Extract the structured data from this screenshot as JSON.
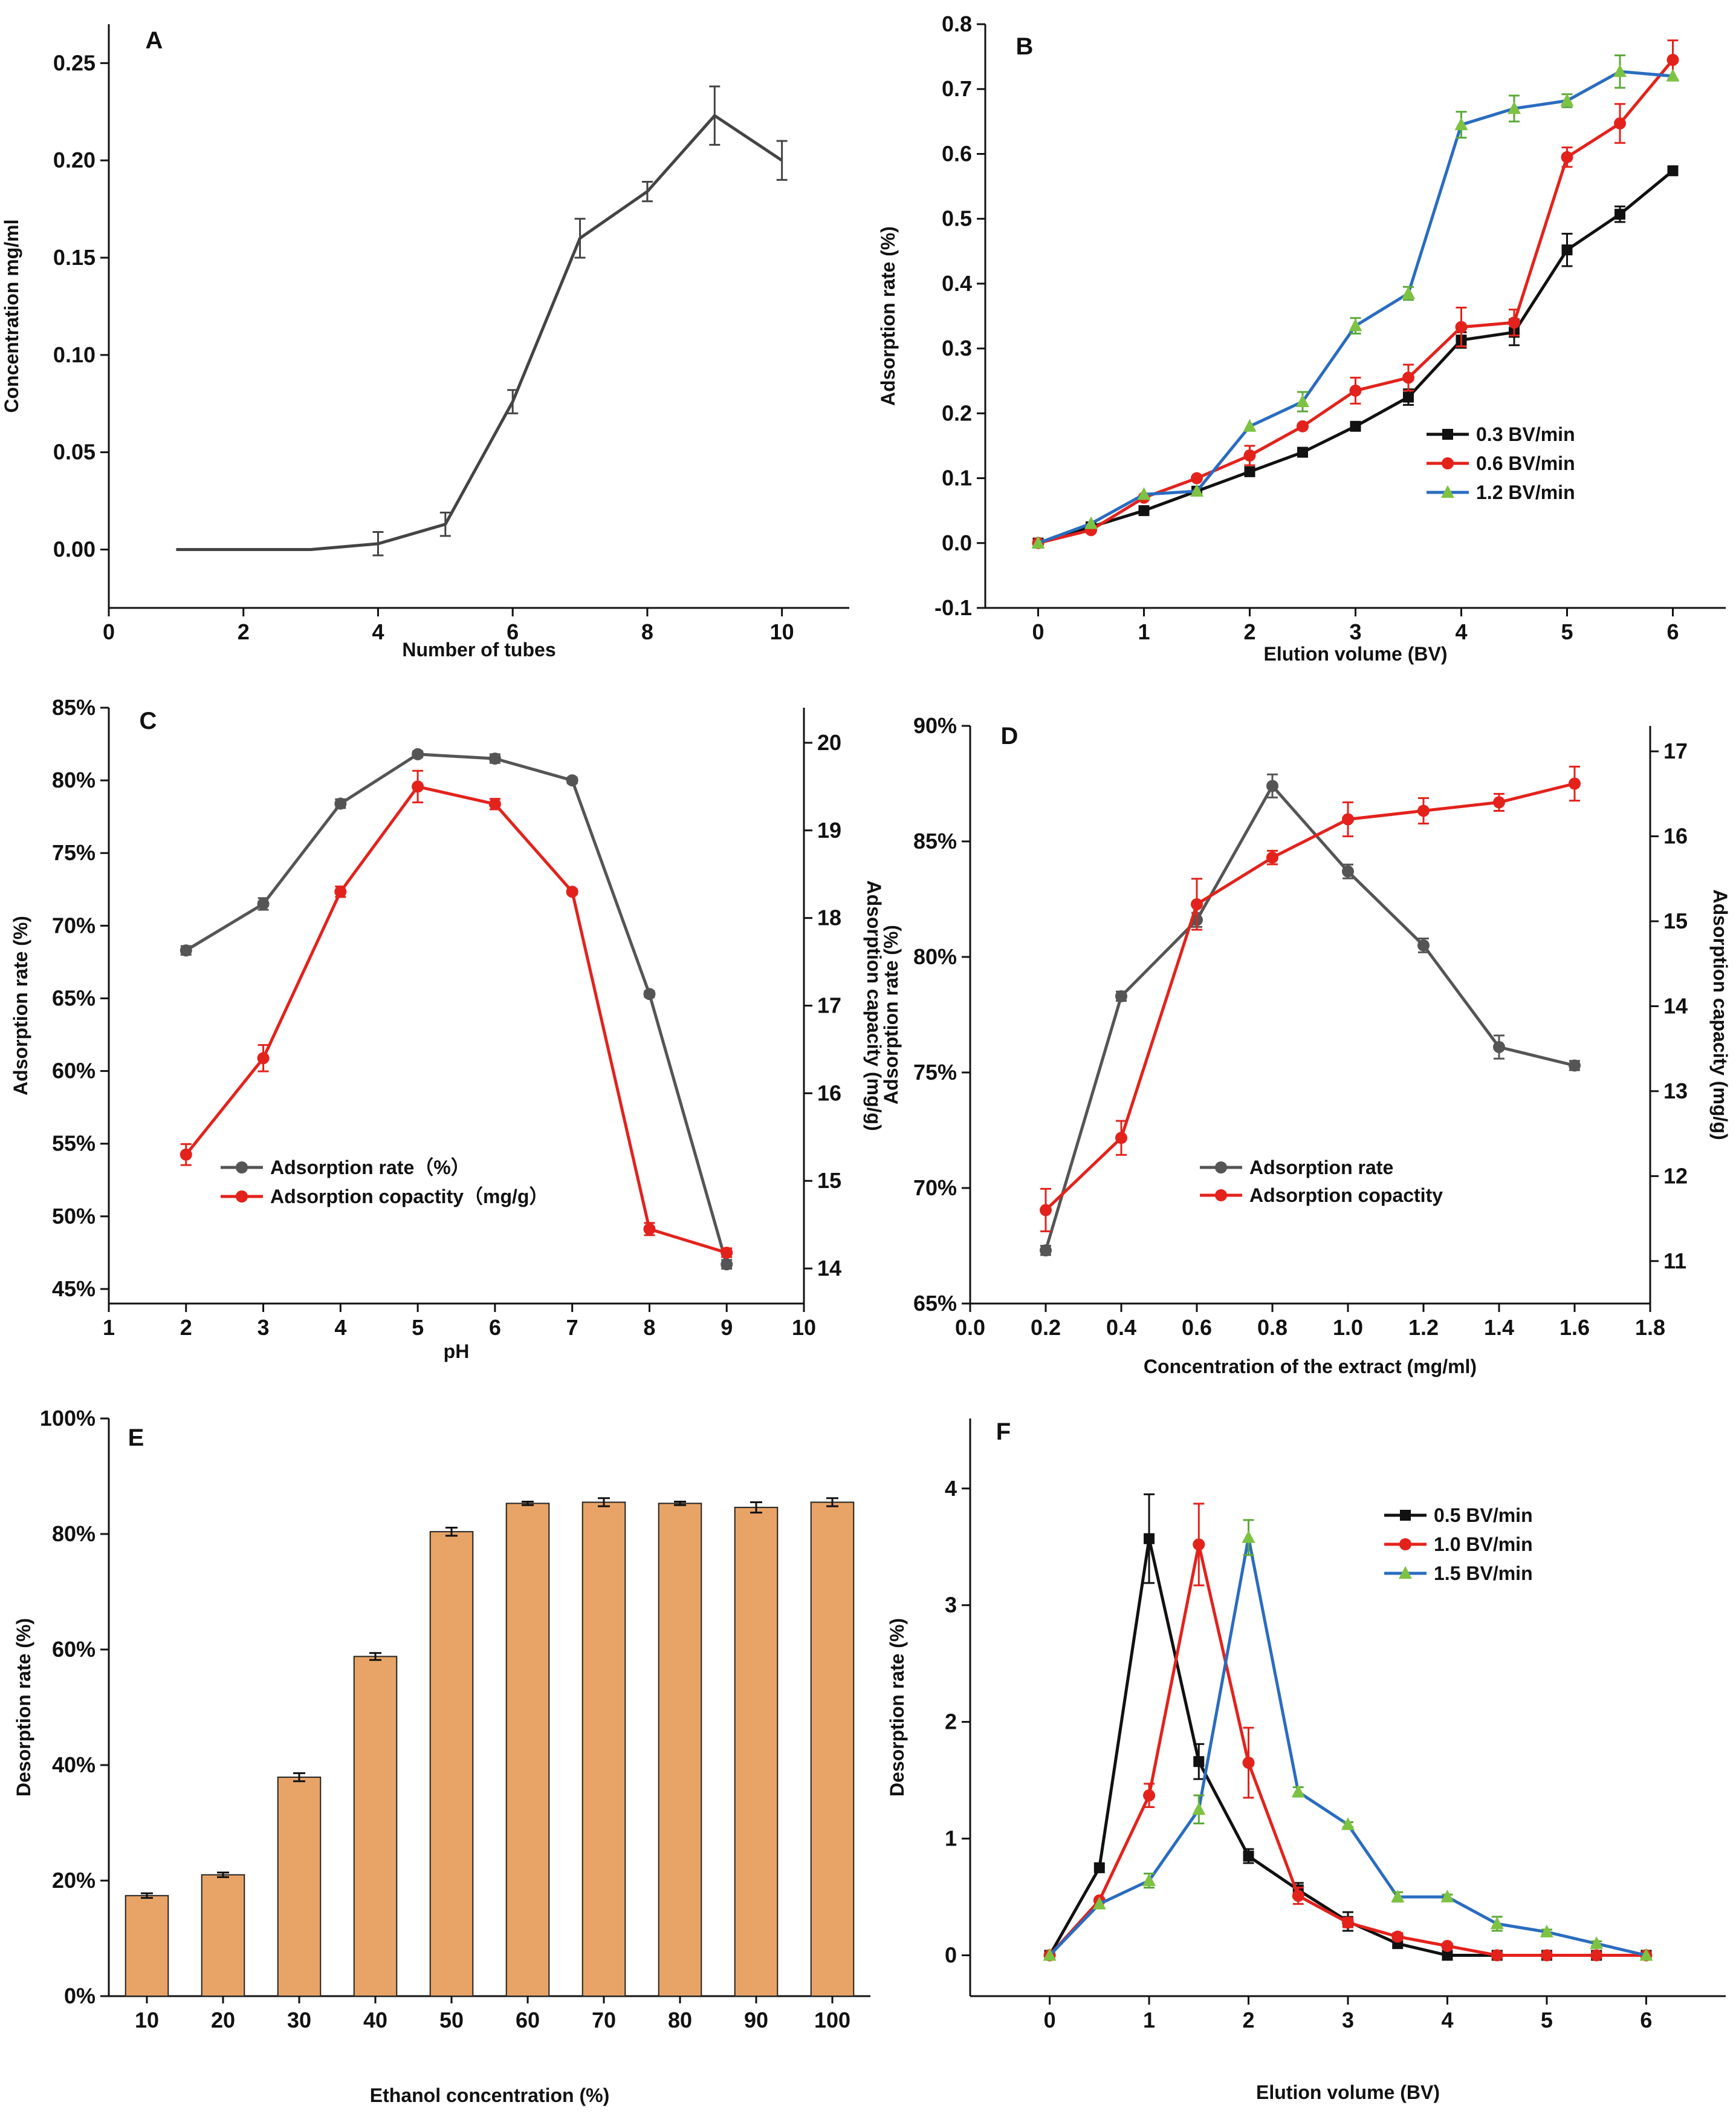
{
  "figure": {
    "panels": [
      "A",
      "B",
      "C",
      "D",
      "E",
      "F"
    ]
  },
  "chart_data": [
    {
      "id": "A",
      "type": "line",
      "panel_label": "A",
      "xlabel": "Number of tubes",
      "ylabel": "Concentration mg/ml",
      "xlim": [
        0,
        11
      ],
      "ylim": [
        -0.03,
        0.27
      ],
      "xticks": [
        0,
        2,
        4,
        6,
        8,
        10
      ],
      "xtick_labels": [
        "0",
        "2",
        "4",
        "6",
        "8",
        "10"
      ],
      "yticks": [
        0.0,
        0.05,
        0.1,
        0.15,
        0.2,
        0.25
      ],
      "ytick_labels": [
        "0.00",
        "0.05",
        "0.10",
        "0.15",
        "0.20",
        "0.25"
      ],
      "series": [
        {
          "name": "Concentration",
          "color": "#444444",
          "marker": "none",
          "x": [
            1,
            2,
            3,
            4,
            5,
            6,
            7,
            8,
            9,
            10
          ],
          "y": [
            0.0,
            0.0,
            0.0,
            0.003,
            0.013,
            0.076,
            0.16,
            0.184,
            0.223,
            0.2
          ],
          "err": [
            0,
            0,
            0,
            0.006,
            0.006,
            0.006,
            0.01,
            0.005,
            0.015,
            0.01
          ]
        }
      ]
    },
    {
      "id": "B",
      "type": "line",
      "panel_label": "B",
      "xlabel": "Elution volume (BV)",
      "ylabel": "Adsorption rate (%)",
      "xlim": [
        -0.5,
        6.5
      ],
      "ylim": [
        -0.1,
        0.8
      ],
      "xticks": [
        0,
        1,
        2,
        3,
        4,
        5,
        6
      ],
      "xtick_labels": [
        "0",
        "1",
        "2",
        "3",
        "4",
        "5",
        "6"
      ],
      "yticks": [
        -0.1,
        0.0,
        0.1,
        0.2,
        0.3,
        0.4,
        0.5,
        0.6,
        0.7,
        0.8
      ],
      "ytick_labels": [
        "-0.1",
        "0.0",
        "0.1",
        "0.2",
        "0.3",
        "0.4",
        "0.5",
        "0.6",
        "0.7",
        "0.8"
      ],
      "legend_position": "bottom-right",
      "series": [
        {
          "name": "0.3 BV/min",
          "color": "#111111",
          "marker": "square",
          "x": [
            0,
            0.5,
            1,
            1.5,
            2,
            2.5,
            3,
            3.5,
            4,
            4.5,
            5,
            5.5,
            6
          ],
          "y": [
            0,
            0.025,
            0.05,
            0.08,
            0.11,
            0.14,
            0.18,
            0.225,
            0.313,
            0.325,
            0.452,
            0.507,
            0.574
          ],
          "err": [
            0,
            0,
            0,
            0,
            0,
            0,
            0,
            0.012,
            0.012,
            0.02,
            0.025,
            0.012,
            0
          ]
        },
        {
          "name": "0.6 BV/min",
          "color": "#e3221c",
          "marker": "circle",
          "x": [
            0,
            0.5,
            1,
            1.5,
            2,
            2.5,
            3,
            3.5,
            4,
            4.5,
            5,
            5.5,
            6
          ],
          "y": [
            0,
            0.02,
            0.07,
            0.1,
            0.135,
            0.18,
            0.235,
            0.255,
            0.333,
            0.34,
            0.595,
            0.647,
            0.745
          ],
          "err": [
            0,
            0,
            0,
            0,
            0.015,
            0,
            0.02,
            0.02,
            0.03,
            0.02,
            0.015,
            0.03,
            0.03
          ]
        },
        {
          "name": "1.2 BV/min",
          "color": "#2a6cc0",
          "marker_color": "#7dc242",
          "marker": "triangle",
          "x": [
            0,
            0.5,
            1,
            1.5,
            2,
            2.5,
            3,
            3.5,
            4,
            4.5,
            5,
            5.5,
            6
          ],
          "y": [
            0,
            0.03,
            0.075,
            0.08,
            0.18,
            0.218,
            0.335,
            0.385,
            0.645,
            0.67,
            0.682,
            0.727,
            0.72
          ],
          "err": [
            0,
            0,
            0,
            0,
            0,
            0.015,
            0.012,
            0.01,
            0.02,
            0.02,
            0.01,
            0.025,
            0
          ]
        }
      ]
    },
    {
      "id": "C",
      "type": "line",
      "panel_label": "C",
      "xlabel": "pH",
      "ylabel": "Adsorption rate (%)",
      "ylabel_right": "Adsorption capacity (mg/g)",
      "xlim": [
        1,
        10
      ],
      "ylim": [
        44,
        85
      ],
      "ylim_right": [
        13.6,
        20.4
      ],
      "xticks": [
        1,
        2,
        3,
        4,
        5,
        6,
        7,
        8,
        9,
        10
      ],
      "xtick_labels": [
        "1",
        "2",
        "3",
        "4",
        "5",
        "6",
        "7",
        "8",
        "9",
        "10"
      ],
      "yticks": [
        45,
        50,
        55,
        60,
        65,
        70,
        75,
        80,
        85
      ],
      "ytick_labels": [
        "45%",
        "50%",
        "55%",
        "60%",
        "65%",
        "70%",
        "75%",
        "80%",
        "85%"
      ],
      "yticks_right": [
        14,
        15,
        16,
        17,
        18,
        19,
        20
      ],
      "ytick_labels_right": [
        "14",
        "15",
        "16",
        "17",
        "18",
        "19",
        "20"
      ],
      "legend_position": "bottom-left",
      "series": [
        {
          "name": "Adsorption rate（%）",
          "axis": "left",
          "color": "#555555",
          "marker": "circle",
          "x": [
            2,
            3,
            4,
            5,
            6,
            7,
            8,
            9
          ],
          "y": [
            68.3,
            71.5,
            78.4,
            81.8,
            81.5,
            80.0,
            65.3,
            46.7
          ],
          "err": [
            0.3,
            0.4,
            0.3,
            0.2,
            0.3,
            0.2,
            0.2,
            0.3
          ]
        },
        {
          "name": "Adsorption copactity（mg/g）",
          "axis": "right",
          "color": "#e3221c",
          "marker": "circle",
          "x": [
            2,
            3,
            4,
            5,
            6,
            7,
            8,
            9
          ],
          "y": [
            15.3,
            16.4,
            18.3,
            19.5,
            19.3,
            18.3,
            14.45,
            14.18
          ],
          "err": [
            0.12,
            0.15,
            0.06,
            0.18,
            0.06,
            0.03,
            0.07,
            0.05
          ]
        }
      ]
    },
    {
      "id": "D",
      "type": "line",
      "panel_label": "D",
      "xlabel": "Concentration of the extract (mg/ml)",
      "ylabel": "Adsorption rate (%)",
      "ylabel_right": "Adsorption capacity (mg/g)",
      "xlim": [
        0,
        1.8
      ],
      "ylim": [
        65,
        90
      ],
      "ylim_right": [
        10.5,
        17.3
      ],
      "xticks": [
        0.0,
        0.2,
        0.4,
        0.6,
        0.8,
        1.0,
        1.2,
        1.4,
        1.6,
        1.8
      ],
      "xtick_labels": [
        "0.0",
        "0.2",
        "0.4",
        "0.6",
        "0.8",
        "1.0",
        "1.2",
        "1.4",
        "1.6",
        "1.8"
      ],
      "yticks": [
        65,
        70,
        75,
        80,
        85,
        90
      ],
      "ytick_labels": [
        "65%",
        "70%",
        "75%",
        "80%",
        "85%",
        "90%"
      ],
      "yticks_right": [
        11,
        12,
        13,
        14,
        15,
        16,
        17
      ],
      "ytick_labels_right": [
        "11",
        "12",
        "13",
        "14",
        "15",
        "16",
        "17"
      ],
      "legend_position": "bottom-center",
      "series": [
        {
          "name": "Adsorption rate",
          "axis": "left",
          "color": "#555555",
          "marker": "circle",
          "x": [
            0.2,
            0.4,
            0.6,
            0.8,
            1.0,
            1.2,
            1.4,
            1.6
          ],
          "y": [
            67.3,
            78.3,
            81.6,
            87.4,
            83.7,
            80.5,
            76.1,
            75.3
          ],
          "err": [
            0.2,
            0.2,
            0.3,
            0.5,
            0.3,
            0.3,
            0.5,
            0.2
          ]
        },
        {
          "name": "Adsorption copactity",
          "axis": "right",
          "color": "#e3221c",
          "marker": "circle",
          "x": [
            0.2,
            0.4,
            0.6,
            0.8,
            1.0,
            1.2,
            1.4,
            1.6
          ],
          "y": [
            11.6,
            12.45,
            15.2,
            15.75,
            16.2,
            16.3,
            16.4,
            16.62
          ],
          "err": [
            0.25,
            0.2,
            0.3,
            0.08,
            0.2,
            0.15,
            0.1,
            0.2
          ]
        }
      ]
    },
    {
      "id": "E",
      "type": "bar",
      "panel_label": "E",
      "xlabel": "Ethanol concentration (%)",
      "ylabel": "Desorption rate (%)",
      "ylim": [
        0,
        100
      ],
      "yticks": [
        0,
        20,
        40,
        60,
        80,
        100
      ],
      "ytick_labels": [
        "0%",
        "20%",
        "40%",
        "60%",
        "80%",
        "100%"
      ],
      "categories": [
        "10",
        "20",
        "30",
        "40",
        "50",
        "60",
        "70",
        "80",
        "90",
        "100"
      ],
      "bar_color": "#e8a467",
      "series": [
        {
          "name": "Desorption rate",
          "values": [
            17.4,
            21.0,
            37.9,
            58.8,
            80.4,
            85.3,
            85.5,
            85.3,
            84.6,
            85.5
          ],
          "err": [
            0.4,
            0.4,
            0.7,
            0.6,
            0.7,
            0.3,
            0.7,
            0.3,
            0.9,
            0.7
          ]
        }
      ]
    },
    {
      "id": "F",
      "type": "line",
      "panel_label": "F",
      "xlabel": "Elution volume (BV)",
      "ylabel": "Desorption rate (%)",
      "xlim": [
        -0.8,
        6.8
      ],
      "ylim": [
        -0.35,
        4.6
      ],
      "xticks": [
        0,
        1,
        2,
        3,
        4,
        5,
        6
      ],
      "xtick_labels": [
        "0",
        "1",
        "2",
        "3",
        "4",
        "5",
        "6"
      ],
      "yticks": [
        0,
        1,
        2,
        3,
        4
      ],
      "ytick_labels": [
        "0",
        "1",
        "2",
        "3",
        "4"
      ],
      "legend_position": "top-right",
      "series": [
        {
          "name": "0.5 BV/min",
          "color": "#111111",
          "marker": "square",
          "x": [
            0,
            0.5,
            1,
            1.5,
            2,
            2.5,
            3,
            3.5,
            4,
            4.5,
            5,
            5.5,
            6
          ],
          "y": [
            0,
            0.75,
            3.57,
            1.66,
            0.85,
            0.56,
            0.29,
            0.1,
            0,
            0,
            0,
            0,
            0
          ],
          "err": [
            0,
            0,
            0.38,
            0.15,
            0.06,
            0.06,
            0.08,
            0,
            0,
            0,
            0,
            0,
            0
          ]
        },
        {
          "name": "1.0 BV/min",
          "color": "#e3221c",
          "marker": "circle",
          "x": [
            0,
            0.5,
            1,
            1.5,
            2,
            2.5,
            3,
            3.5,
            4,
            4.5,
            5,
            5.5,
            6
          ],
          "y": [
            0,
            0.47,
            1.37,
            3.52,
            1.65,
            0.51,
            0.28,
            0.16,
            0.08,
            0,
            0,
            0,
            0
          ],
          "err": [
            0,
            0,
            0.1,
            0.35,
            0.3,
            0.07,
            0.04,
            0.03,
            0.02,
            0,
            0,
            0,
            0
          ]
        },
        {
          "name": "1.5 BV/min",
          "color": "#2a6cc0",
          "marker_color": "#7dc242",
          "marker": "triangle",
          "x": [
            0,
            0.5,
            1,
            1.5,
            2,
            2.5,
            3,
            3.5,
            4,
            4.5,
            5,
            5.5,
            6
          ],
          "y": [
            0,
            0.44,
            0.64,
            1.25,
            3.58,
            1.4,
            1.12,
            0.5,
            0.5,
            0.27,
            0.2,
            0.1,
            0
          ],
          "err": [
            0,
            0,
            0.06,
            0.12,
            0.15,
            0.04,
            0.02,
            0.04,
            0.02,
            0.06,
            0.02,
            0.02,
            0
          ]
        }
      ]
    }
  ]
}
